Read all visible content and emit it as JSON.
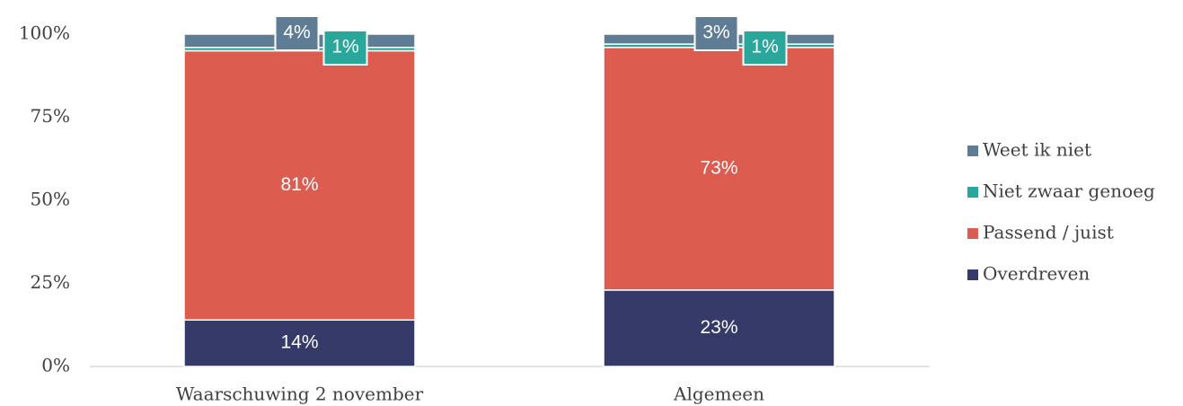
{
  "chart_data": {
    "type": "stacked_bar",
    "categories": [
      "Waarschuwing 2 november",
      "Algemeen"
    ],
    "series": [
      {
        "name": "Overdreven",
        "color": "#363a68",
        "values": [
          14,
          23
        ],
        "value_labels": [
          "14%",
          "23%"
        ]
      },
      {
        "name": "Passend / juist",
        "color": "#dd5c50",
        "values": [
          81,
          73
        ],
        "value_labels": [
          "81%",
          "73%"
        ]
      },
      {
        "name": "Niet zwaar genoeg",
        "color": "#2aa79b",
        "values": [
          1,
          1
        ],
        "value_labels": [
          "1%",
          "1%"
        ]
      },
      {
        "name": "Weet ik niet",
        "color": "#5e7d95",
        "values": [
          4,
          3
        ],
        "value_labels": [
          "4%",
          "3%"
        ]
      }
    ],
    "ylim": [
      0,
      100
    ],
    "yticks": [
      {
        "value": 0,
        "label": "0%"
      },
      {
        "value": 25,
        "label": "25%"
      },
      {
        "value": 50,
        "label": "50%"
      },
      {
        "value": 75,
        "label": "75%"
      },
      {
        "value": 100,
        "label": "100%"
      }
    ],
    "legend": "right"
  }
}
